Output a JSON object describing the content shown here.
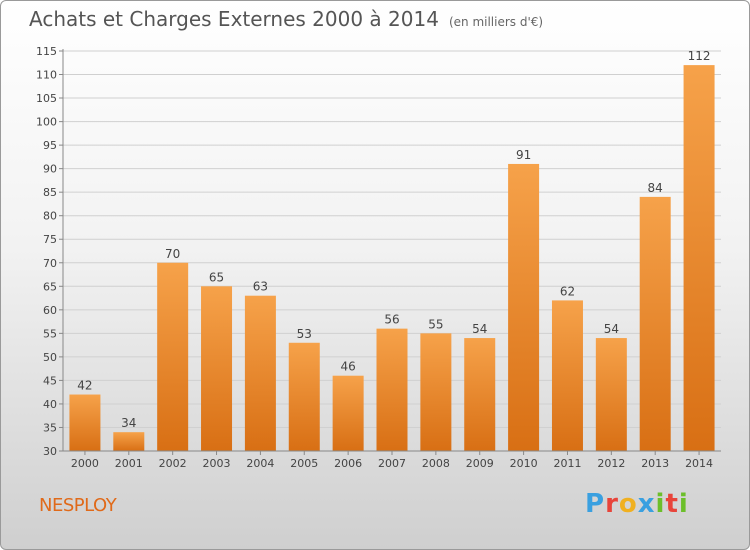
{
  "header": {
    "title": "Achats et Charges Externes 2000 à 2014",
    "unit": "(en milliers d'€)"
  },
  "footer": {
    "commune": "NESPLOY",
    "logo_letters": [
      "P",
      "r",
      "o",
      "x",
      "i",
      "t",
      "i"
    ],
    "logo_colors": [
      "#3aa0e0",
      "#e8443a",
      "#f0b020",
      "#3aa0e0",
      "#6cbf2a",
      "#e8443a",
      "#6cbf2a"
    ]
  },
  "colors": {
    "bar_top": "#f6a24a",
    "bar_bottom": "#d86f14",
    "grid": "#d0d0d0",
    "commune": "#e06a1a"
  },
  "chart_data": {
    "type": "bar",
    "title": "Achats et Charges Externes 2000 à 2014",
    "subtitle": "(en milliers d'€)",
    "xlabel": "",
    "ylabel": "",
    "categories": [
      "2000",
      "2001",
      "2002",
      "2003",
      "2004",
      "2005",
      "2006",
      "2007",
      "2008",
      "2009",
      "2010",
      "2011",
      "2012",
      "2013",
      "2014"
    ],
    "values": [
      42,
      34,
      70,
      65,
      63,
      53,
      46,
      56,
      55,
      54,
      91,
      62,
      54,
      84,
      112
    ],
    "ylim": [
      30,
      115
    ],
    "yticks": [
      30,
      35,
      40,
      45,
      50,
      55,
      60,
      65,
      70,
      75,
      80,
      85,
      90,
      95,
      100,
      105,
      110,
      115
    ],
    "grid": true,
    "data_labels": true,
    "legend": "none"
  }
}
